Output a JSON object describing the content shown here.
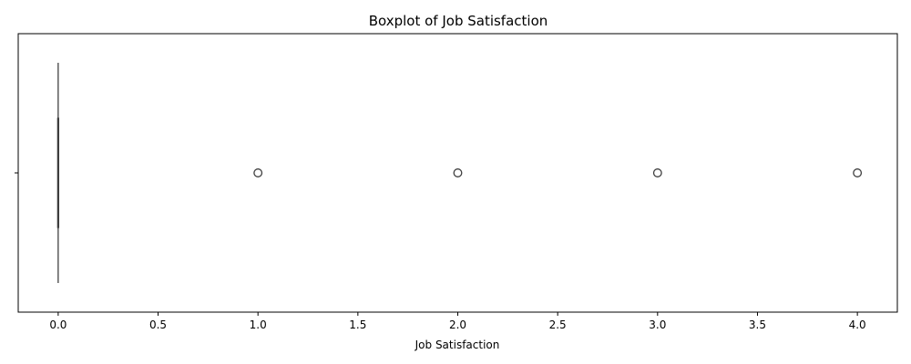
{
  "chart_data": {
    "type": "boxplot",
    "orientation": "horizontal",
    "title": "Boxplot of Job Satisfaction",
    "xlabel": "Job Satisfaction",
    "ylabel": "",
    "xlim": [
      -0.2,
      4.2
    ],
    "xticks": [
      0.0,
      0.5,
      1.0,
      1.5,
      2.0,
      2.5,
      3.0,
      3.5,
      4.0
    ],
    "xtick_labels": [
      "0.0",
      "0.5",
      "1.0",
      "1.5",
      "2.0",
      "2.5",
      "3.0",
      "3.5",
      "4.0"
    ],
    "ytick_labels": [
      ""
    ],
    "grid": false,
    "box": {
      "min": 0.0,
      "q1": 0.0,
      "median": 0.0,
      "q3": 0.0,
      "max": 0.0
    },
    "outliers": [
      1.0,
      2.0,
      3.0,
      4.0
    ],
    "colors": {
      "line": "#3f3f3f",
      "box_fill": "#3274a1",
      "outlier_edge": "#3f3f3f"
    }
  }
}
